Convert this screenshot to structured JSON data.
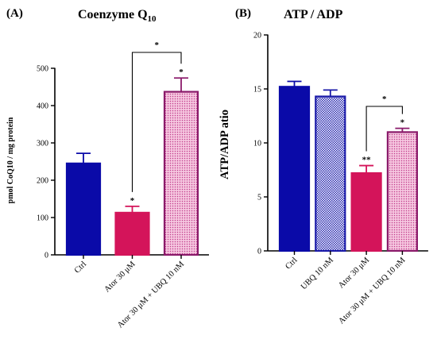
{
  "colors": {
    "ctrl": "#0a0aa8",
    "ubq": "#1a1aa8",
    "ator": "#d4145a",
    "combo": "#8a1a6a",
    "combo_fill": "#f2b8d8"
  },
  "chart_data": [
    {
      "panel": "(A)",
      "type": "bar",
      "title": "Coenzyme Q",
      "title_sub": "10",
      "ylabel": "pmol CoQ10 / mg protein",
      "ylim": [
        0,
        500
      ],
      "yticks": [
        0,
        100,
        200,
        300,
        400,
        500
      ],
      "categories": [
        "Ctrl",
        "Ator 30 μM",
        "Ator 30 μM + UBQ 10 nM"
      ],
      "values": [
        245,
        113,
        437
      ],
      "errors": [
        27,
        17,
        37
      ],
      "fills": [
        "solid",
        "solid",
        "dotted"
      ],
      "markers": [
        "",
        "*",
        "*"
      ],
      "comparisons": [
        {
          "from": 1,
          "to": 2,
          "label": "*"
        }
      ]
    },
    {
      "panel": "(B)",
      "type": "bar",
      "title": "ATP / ADP",
      "title_sub": "",
      "ylabel": "ATP/ADP atio",
      "ylim": [
        0,
        20
      ],
      "yticks": [
        0,
        5,
        10,
        15,
        20
      ],
      "categories": [
        "Ctrl",
        "UBQ 10 nM",
        "Ator 30 μM",
        "Ator 30 μM + UBQ 10 nM"
      ],
      "values": [
        15.2,
        14.3,
        7.2,
        11.0
      ],
      "errors": [
        0.5,
        0.6,
        0.7,
        0.35
      ],
      "fills": [
        "solid",
        "checker",
        "solid",
        "dotted"
      ],
      "markers": [
        "",
        "",
        "**",
        "*"
      ],
      "comparisons": [
        {
          "from": 2,
          "to": 3,
          "label": "*"
        }
      ]
    }
  ]
}
